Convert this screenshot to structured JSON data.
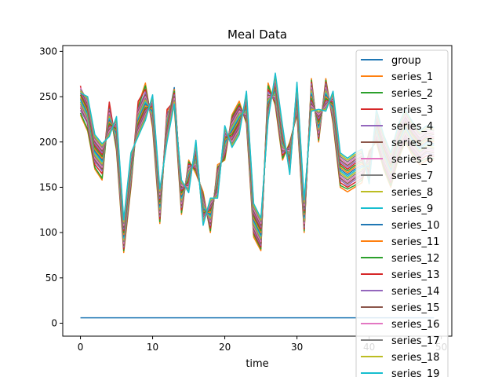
{
  "chart_data": {
    "type": "line",
    "title": "Meal Data",
    "xlabel": "time",
    "ylabel": "",
    "xlim": [
      -2.45,
      51.45
    ],
    "ylim": [
      -14.3,
      306.4
    ],
    "x_ticks": [
      0,
      10,
      20,
      30,
      40,
      50
    ],
    "y_ticks": [
      0,
      50,
      100,
      150,
      200,
      250,
      300
    ],
    "legend_position": "upper-right",
    "grid": false,
    "palette": [
      "#1f77b4",
      "#ff7f0e",
      "#2ca02c",
      "#d62728",
      "#9467bd",
      "#8c564b",
      "#e377c2",
      "#7f7f7f",
      "#bcbd22",
      "#17becf"
    ],
    "x": [
      0,
      1,
      2,
      3,
      4,
      5,
      6,
      7,
      8,
      9,
      10,
      11,
      12,
      13,
      14,
      15,
      16,
      17,
      18,
      19,
      20,
      21,
      22,
      23,
      24,
      25,
      26,
      27,
      28,
      29,
      30,
      31,
      32,
      33,
      34,
      35,
      36,
      37,
      38,
      39,
      40,
      41,
      42,
      43,
      44,
      45,
      46,
      47,
      48,
      49
    ],
    "series": [
      {
        "name": "group",
        "values": [
          6,
          6,
          6,
          6,
          6,
          6,
          6,
          6,
          6,
          6,
          6,
          6,
          6,
          6,
          6,
          6,
          6,
          6,
          6,
          6,
          6,
          6,
          6,
          6,
          6,
          6,
          6,
          6,
          6,
          6,
          6,
          6,
          6,
          6,
          6,
          6,
          6,
          6,
          6,
          6,
          6,
          6,
          6,
          6,
          6,
          6,
          6,
          6,
          6,
          6
        ]
      },
      {
        "name": "series_1",
        "values": [
          230,
          212,
          170,
          158,
          240,
          190,
          78,
          150,
          240,
          265,
          215,
          110,
          235,
          240,
          120,
          180,
          165,
          145,
          100,
          175,
          180,
          230,
          245,
          220,
          95,
          80,
          265,
          240,
          180,
          200,
          230,
          100,
          270,
          200,
          270,
          220,
          150,
          145,
          150,
          155,
          190,
          200,
          170,
          150,
          180,
          200,
          185,
          175,
          180,
          180
        ]
      },
      {
        "name": "series_2",
        "values": [
          232,
          214,
          172,
          160,
          238,
          192,
          80,
          152,
          238,
          262,
          218,
          112,
          232,
          242,
          122,
          178,
          168,
          142,
          102,
          172,
          182,
          228,
          242,
          222,
          98,
          82,
          262,
          242,
          182,
          198,
          232,
          102,
          268,
          202,
          268,
          222,
          152,
          148,
          152,
          158,
          188,
          202,
          172,
          152,
          182,
          202,
          188,
          178,
          182,
          182
        ]
      },
      {
        "name": "series_3",
        "values": [
          262,
          218,
          175,
          165,
          244,
          195,
          82,
          155,
          245,
          258,
          220,
          115,
          236,
          245,
          125,
          176,
          170,
          140,
          105,
          170,
          185,
          226,
          240,
          224,
          100,
          84,
          258,
          244,
          185,
          196,
          234,
          104,
          266,
          204,
          266,
          224,
          155,
          150,
          155,
          160,
          186,
          204,
          175,
          155,
          185,
          204,
          190,
          180,
          185,
          184
        ]
      },
      {
        "name": "series_4",
        "values": [
          235,
          220,
          178,
          168,
          236,
          198,
          84,
          158,
          236,
          255,
          222,
          118,
          230,
          248,
          128,
          174,
          172,
          138,
          108,
          168,
          188,
          224,
          238,
          226,
          102,
          86,
          255,
          246,
          188,
          194,
          236,
          106,
          264,
          206,
          264,
          226,
          158,
          152,
          158,
          162,
          184,
          206,
          178,
          158,
          188,
          206,
          192,
          182,
          188,
          186
        ]
      },
      {
        "name": "series_5",
        "values": [
          238,
          222,
          180,
          170,
          234,
          200,
          86,
          160,
          234,
          252,
          224,
          120,
          228,
          250,
          130,
          172,
          174,
          136,
          110,
          166,
          190,
          222,
          236,
          228,
          104,
          88,
          252,
          248,
          190,
          192,
          238,
          108,
          262,
          208,
          262,
          228,
          160,
          154,
          160,
          164,
          182,
          208,
          180,
          160,
          190,
          208,
          194,
          184,
          190,
          188
        ]
      },
      {
        "name": "series_6",
        "values": [
          240,
          224,
          182,
          172,
          232,
          202,
          88,
          162,
          232,
          250,
          226,
          122,
          226,
          252,
          132,
          170,
          176,
          134,
          112,
          164,
          192,
          220,
          234,
          230,
          106,
          90,
          250,
          250,
          192,
          190,
          240,
          110,
          260,
          210,
          260,
          230,
          162,
          156,
          162,
          166,
          180,
          210,
          182,
          162,
          192,
          210,
          196,
          186,
          192,
          190
        ]
      },
      {
        "name": "series_7",
        "values": [
          242,
          226,
          184,
          174,
          230,
          204,
          90,
          164,
          230,
          248,
          228,
          124,
          224,
          254,
          134,
          168,
          178,
          132,
          114,
          162,
          194,
          218,
          232,
          232,
          108,
          92,
          248,
          252,
          194,
          188,
          242,
          112,
          258,
          212,
          258,
          232,
          164,
          158,
          164,
          168,
          178,
          212,
          184,
          164,
          194,
          212,
          198,
          188,
          194,
          192
        ]
      },
      {
        "name": "series_8",
        "values": [
          244,
          228,
          186,
          176,
          228,
          206,
          92,
          166,
          228,
          246,
          230,
          126,
          222,
          256,
          136,
          166,
          180,
          130,
          116,
          160,
          196,
          216,
          230,
          234,
          110,
          94,
          246,
          254,
          196,
          186,
          244,
          114,
          256,
          214,
          256,
          234,
          166,
          160,
          166,
          170,
          176,
          214,
          186,
          166,
          196,
          214,
          200,
          190,
          196,
          194
        ]
      },
      {
        "name": "series_9",
        "values": [
          246,
          230,
          188,
          178,
          226,
          208,
          94,
          168,
          226,
          244,
          232,
          128,
          220,
          258,
          138,
          164,
          182,
          128,
          118,
          158,
          198,
          214,
          228,
          236,
          112,
          96,
          244,
          256,
          198,
          184,
          246,
          116,
          254,
          216,
          254,
          236,
          168,
          162,
          168,
          172,
          174,
          216,
          188,
          168,
          198,
          216,
          202,
          192,
          198,
          196
        ]
      },
      {
        "name": "series_10",
        "values": [
          248,
          232,
          190,
          180,
          224,
          210,
          96,
          170,
          224,
          242,
          234,
          130,
          218,
          260,
          140,
          162,
          184,
          126,
          120,
          156,
          200,
          212,
          226,
          238,
          114,
          98,
          242,
          258,
          200,
          182,
          248,
          118,
          252,
          218,
          252,
          238,
          170,
          164,
          170,
          174,
          172,
          218,
          190,
          170,
          200,
          218,
          204,
          194,
          200,
          198
        ]
      },
      {
        "name": "series_11",
        "values": [
          250,
          234,
          192,
          182,
          222,
          212,
          98,
          172,
          222,
          240,
          236,
          132,
          216,
          258,
          142,
          160,
          186,
          124,
          122,
          154,
          202,
          210,
          224,
          240,
          116,
          100,
          240,
          260,
          202,
          180,
          250,
          120,
          250,
          220,
          250,
          240,
          172,
          166,
          172,
          176,
          170,
          220,
          192,
          172,
          202,
          220,
          206,
          196,
          202,
          200
        ]
      },
      {
        "name": "series_12",
        "values": [
          252,
          236,
          194,
          184,
          220,
          214,
          100,
          174,
          220,
          238,
          238,
          134,
          214,
          256,
          144,
          158,
          188,
          122,
          124,
          152,
          204,
          208,
          222,
          242,
          118,
          102,
          238,
          262,
          204,
          178,
          252,
          122,
          248,
          222,
          248,
          242,
          174,
          168,
          174,
          178,
          168,
          222,
          194,
          174,
          204,
          222,
          208,
          198,
          204,
          202
        ]
      },
      {
        "name": "series_13",
        "values": [
          254,
          238,
          196,
          186,
          218,
          216,
          102,
          176,
          218,
          236,
          240,
          136,
          212,
          254,
          146,
          156,
          190,
          120,
          126,
          150,
          206,
          206,
          220,
          244,
          120,
          104,
          236,
          264,
          206,
          176,
          254,
          124,
          246,
          224,
          246,
          244,
          176,
          170,
          176,
          180,
          166,
          224,
          196,
          176,
          206,
          224,
          210,
          200,
          206,
          204
        ]
      },
      {
        "name": "series_14",
        "values": [
          256,
          240,
          198,
          188,
          216,
          218,
          104,
          178,
          216,
          234,
          242,
          138,
          210,
          252,
          148,
          154,
          192,
          118,
          128,
          148,
          208,
          204,
          218,
          246,
          122,
          106,
          234,
          266,
          208,
          174,
          256,
          126,
          244,
          226,
          244,
          246,
          178,
          172,
          178,
          182,
          164,
          226,
          198,
          178,
          208,
          226,
          212,
          202,
          208,
          206
        ]
      },
      {
        "name": "series_15",
        "values": [
          258,
          242,
          200,
          190,
          214,
          220,
          106,
          180,
          214,
          232,
          244,
          140,
          208,
          250,
          150,
          152,
          194,
          116,
          130,
          146,
          210,
          202,
          216,
          248,
          124,
          108,
          232,
          268,
          210,
          172,
          258,
          128,
          242,
          228,
          242,
          248,
          180,
          174,
          180,
          184,
          162,
          228,
          200,
          180,
          210,
          228,
          214,
          204,
          210,
          208
        ]
      },
      {
        "name": "series_16",
        "values": [
          260,
          244,
          202,
          192,
          212,
          222,
          108,
          182,
          212,
          230,
          246,
          142,
          206,
          248,
          152,
          150,
          196,
          114,
          132,
          144,
          212,
          200,
          214,
          250,
          126,
          110,
          230,
          270,
          212,
          170,
          260,
          130,
          240,
          230,
          240,
          250,
          182,
          176,
          182,
          186,
          160,
          230,
          202,
          182,
          212,
          230,
          216,
          206,
          212,
          210
        ]
      },
      {
        "name": "series_17",
        "values": [
          258,
          246,
          204,
          194,
          210,
          224,
          110,
          184,
          210,
          228,
          248,
          144,
          204,
          246,
          154,
          148,
          198,
          112,
          134,
          142,
          214,
          198,
          212,
          252,
          128,
          112,
          228,
          272,
          214,
          168,
          262,
          132,
          238,
          232,
          238,
          252,
          184,
          178,
          184,
          188,
          158,
          232,
          204,
          184,
          214,
          232,
          218,
          208,
          214,
          212
        ]
      },
      {
        "name": "series_18",
        "values": [
          256,
          248,
          206,
          196,
          208,
          226,
          112,
          186,
          208,
          226,
          250,
          146,
          202,
          244,
          156,
          146,
          200,
          110,
          136,
          140,
          216,
          196,
          210,
          254,
          130,
          114,
          226,
          274,
          216,
          166,
          264,
          134,
          236,
          234,
          236,
          254,
          186,
          180,
          186,
          190,
          156,
          234,
          206,
          186,
          216,
          234,
          220,
          210,
          216,
          214
        ]
      },
      {
        "name": "series_19",
        "values": [
          254,
          250,
          208,
          198,
          206,
          228,
          114,
          188,
          206,
          224,
          252,
          148,
          200,
          242,
          158,
          144,
          202,
          108,
          138,
          138,
          218,
          194,
          208,
          256,
          132,
          116,
          224,
          276,
          218,
          164,
          266,
          136,
          234,
          236,
          234,
          256,
          188,
          182,
          188,
          192,
          154,
          236,
          208,
          188,
          218,
          236,
          222,
          212,
          218,
          216
        ]
      }
    ]
  }
}
